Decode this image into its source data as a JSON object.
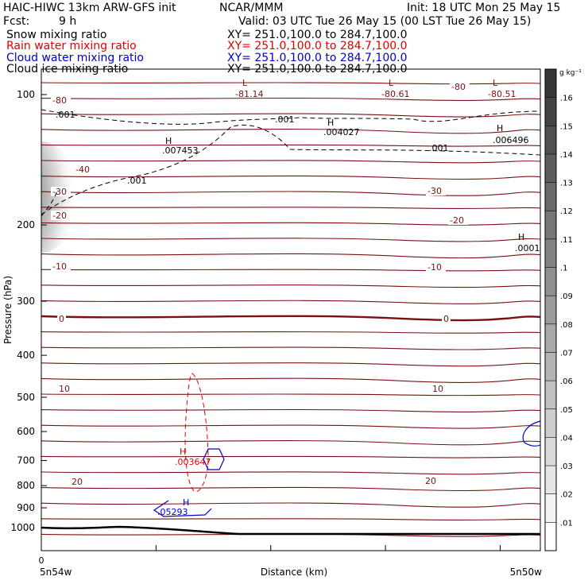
{
  "header": {
    "model": "HAIC-HIWC 13km ARW-GFS init",
    "org": "NCAR/MMM",
    "init": "Init: 18 UTC Mon 25 May 15",
    "fcst_label": "Fcst:",
    "fcst_value": "9 h",
    "valid": "Valid: 03 UTC Tue 26 May 15 (00 LST Tue 26 May 15)",
    "fields": [
      {
        "name": "Snow mixing ratio",
        "xy": "XY= 251.0,100.0 to 284.7,100.0",
        "color": "#000000"
      },
      {
        "name": "Rain water mixing ratio",
        "xy": "XY= 251.0,100.0 to 284.7,100.0",
        "color": "#e00000"
      },
      {
        "name": "Cloud water mixing ratio",
        "xy": "XY= 251.0,100.0 to 284.7,100.0",
        "color": "#0000cc"
      },
      {
        "name": "Cloud ice mixing ratio",
        "xy": "XY= 251.0,100.0 to 284.7,100.0",
        "color": "#000000"
      }
    ]
  },
  "chart_data": {
    "type": "cross-section contour",
    "xlabel": "Distance (km)",
    "ylabel": "Pressure (hPa)",
    "x_tick_labels": [
      "0"
    ],
    "x_left_label": "5n54w",
    "x_right_label": "5n50w",
    "y_axis": {
      "scale": "log",
      "ticks": [
        100,
        200,
        300,
        400,
        500,
        600,
        700,
        800,
        900,
        1000
      ]
    },
    "colorbar": {
      "units": "g kg⁻¹",
      "ticks": [
        ".01",
        ".02",
        ".03",
        ".04",
        ".05",
        ".06",
        ".07",
        ".08",
        ".09",
        ".1",
        ".11",
        ".12",
        ".13",
        ".14",
        ".15",
        ".16"
      ]
    },
    "temperature_contours": {
      "color": "#7a1010",
      "labels": [
        "-80",
        "-80",
        "-40",
        "-30",
        "-30",
        "-20",
        "-20",
        "-10",
        "-10",
        "0",
        "0",
        "10",
        "10",
        "20",
        "20"
      ]
    },
    "extrema": [
      {
        "type": "L",
        "value": "-81.14",
        "color": "#7a1010"
      },
      {
        "type": "L",
        "value": "-80.61",
        "color": "#7a1010"
      },
      {
        "type": "L",
        "value": "-80.51",
        "color": "#7a1010"
      },
      {
        "type": "H",
        "value": ".007453",
        "color": "#000000"
      },
      {
        "type": "H",
        "value": ".004027",
        "color": "#000000"
      },
      {
        "type": "H",
        "value": ".006496",
        "color": "#000000"
      },
      {
        "type": "H",
        "value": ".0001",
        "color": "#000000"
      },
      {
        "type": "H",
        "value": ".003647",
        "color": "#e00000"
      },
      {
        "type": "H",
        "value": ".05293",
        "color": "#0000cc"
      }
    ],
    "dashed_contour_labels": [
      ".001",
      ".001",
      ".001",
      ".001"
    ]
  }
}
